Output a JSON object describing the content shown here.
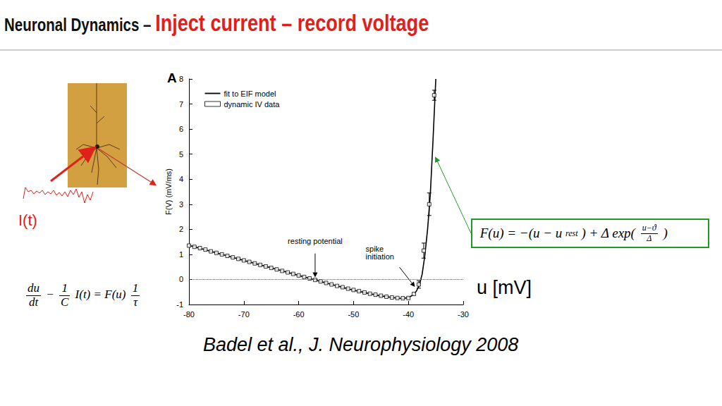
{
  "slide": {
    "title_black": "Neuronal Dynamics – ",
    "title_red": "Inject current – record voltage",
    "current_label": "I(t)",
    "equation": [
      {
        "frac": [
          "du",
          "dt"
        ]
      },
      {
        "text": "−"
      },
      {
        "frac": [
          "1",
          "C"
        ]
      },
      {
        "text": "I(t) = F(u)"
      },
      {
        "frac": [
          "1",
          "τ"
        ]
      }
    ],
    "model_equation": [
      {
        "text": "F(u) = −(u − u"
      },
      {
        "sub": "rest"
      },
      {
        "text": ") + Δ exp("
      },
      {
        "frac": [
          "u−ϑ",
          "Δ"
        ]
      },
      {
        "text": ")"
      }
    ],
    "citation": "Badel et al., J. Neurophysiology 2008"
  },
  "chart_data": {
    "type": "line",
    "panel_label": "A",
    "ylabel": "F(V) (mV/ms)",
    "xlabel": "u [mV]",
    "xlim": [
      -80,
      -30
    ],
    "xticks": [
      -80,
      -70,
      -60,
      -50,
      -40,
      -30
    ],
    "ylim": [
      -1,
      8
    ],
    "yticks": [
      -1,
      0,
      1,
      2,
      3,
      4,
      5,
      6,
      7,
      8
    ],
    "grid": false,
    "legend": "upper left",
    "hline": 0,
    "series": [
      {
        "name": "fit to EIF model",
        "type": "line",
        "color": "#000000",
        "line_style": "solid",
        "x": [
          -80,
          -75,
          -70,
          -65,
          -60,
          -55,
          -50,
          -45,
          -43,
          -42,
          -41,
          -40,
          -39,
          -38.5,
          -38,
          -37.5,
          -37,
          -36.5,
          -36,
          -35.5,
          -35.0
        ],
        "values": [
          1.36,
          1.06,
          0.76,
          0.46,
          0.16,
          -0.14,
          -0.43,
          -0.66,
          -0.72,
          -0.745,
          -0.755,
          -0.73,
          -0.6,
          -0.45,
          -0.22,
          0.2,
          0.95,
          2.0,
          3.4,
          5.6,
          8.0
        ]
      },
      {
        "name": "dynamic IV data",
        "type": "scatter",
        "marker": "square",
        "color": "#000000",
        "x": [
          -80,
          -79,
          -78,
          -77,
          -76,
          -75,
          -74,
          -73,
          -72,
          -71,
          -70,
          -69,
          -68,
          -67,
          -66,
          -65,
          -64,
          -63,
          -62,
          -61,
          -60,
          -59,
          -58,
          -57,
          -56,
          -55,
          -54,
          -53,
          -52,
          -51,
          -50,
          -49,
          -48,
          -47,
          -46,
          -45,
          -44,
          -43,
          -42,
          -41,
          -40,
          -39,
          -38.1,
          -37.2,
          -36.2,
          -35.3
        ],
        "values": [
          1.35,
          1.3,
          1.25,
          1.19,
          1.12,
          1.06,
          1.0,
          0.94,
          0.88,
          0.82,
          0.76,
          0.7,
          0.64,
          0.58,
          0.52,
          0.46,
          0.4,
          0.34,
          0.28,
          0.22,
          0.16,
          0.1,
          0.04,
          -0.02,
          -0.08,
          -0.14,
          -0.2,
          -0.26,
          -0.31,
          -0.37,
          -0.42,
          -0.47,
          -0.52,
          -0.57,
          -0.61,
          -0.65,
          -0.69,
          -0.72,
          -0.74,
          -0.75,
          -0.74,
          -0.58,
          -0.2,
          1.15,
          3.0,
          7.35
        ],
        "errors": [
          null,
          null,
          null,
          null,
          null,
          null,
          null,
          null,
          null,
          null,
          null,
          null,
          null,
          null,
          null,
          null,
          null,
          null,
          null,
          null,
          null,
          null,
          null,
          null,
          null,
          null,
          null,
          null,
          null,
          null,
          null,
          null,
          null,
          null,
          null,
          null,
          null,
          null,
          null,
          null,
          null,
          null,
          0.15,
          0.3,
          0.45,
          0.2
        ]
      }
    ],
    "annotations": [
      {
        "text": "resting potential",
        "x": -57,
        "y": 0.08
      },
      {
        "text": "spike initiation",
        "x": -38.8,
        "y": -0.3
      }
    ]
  }
}
